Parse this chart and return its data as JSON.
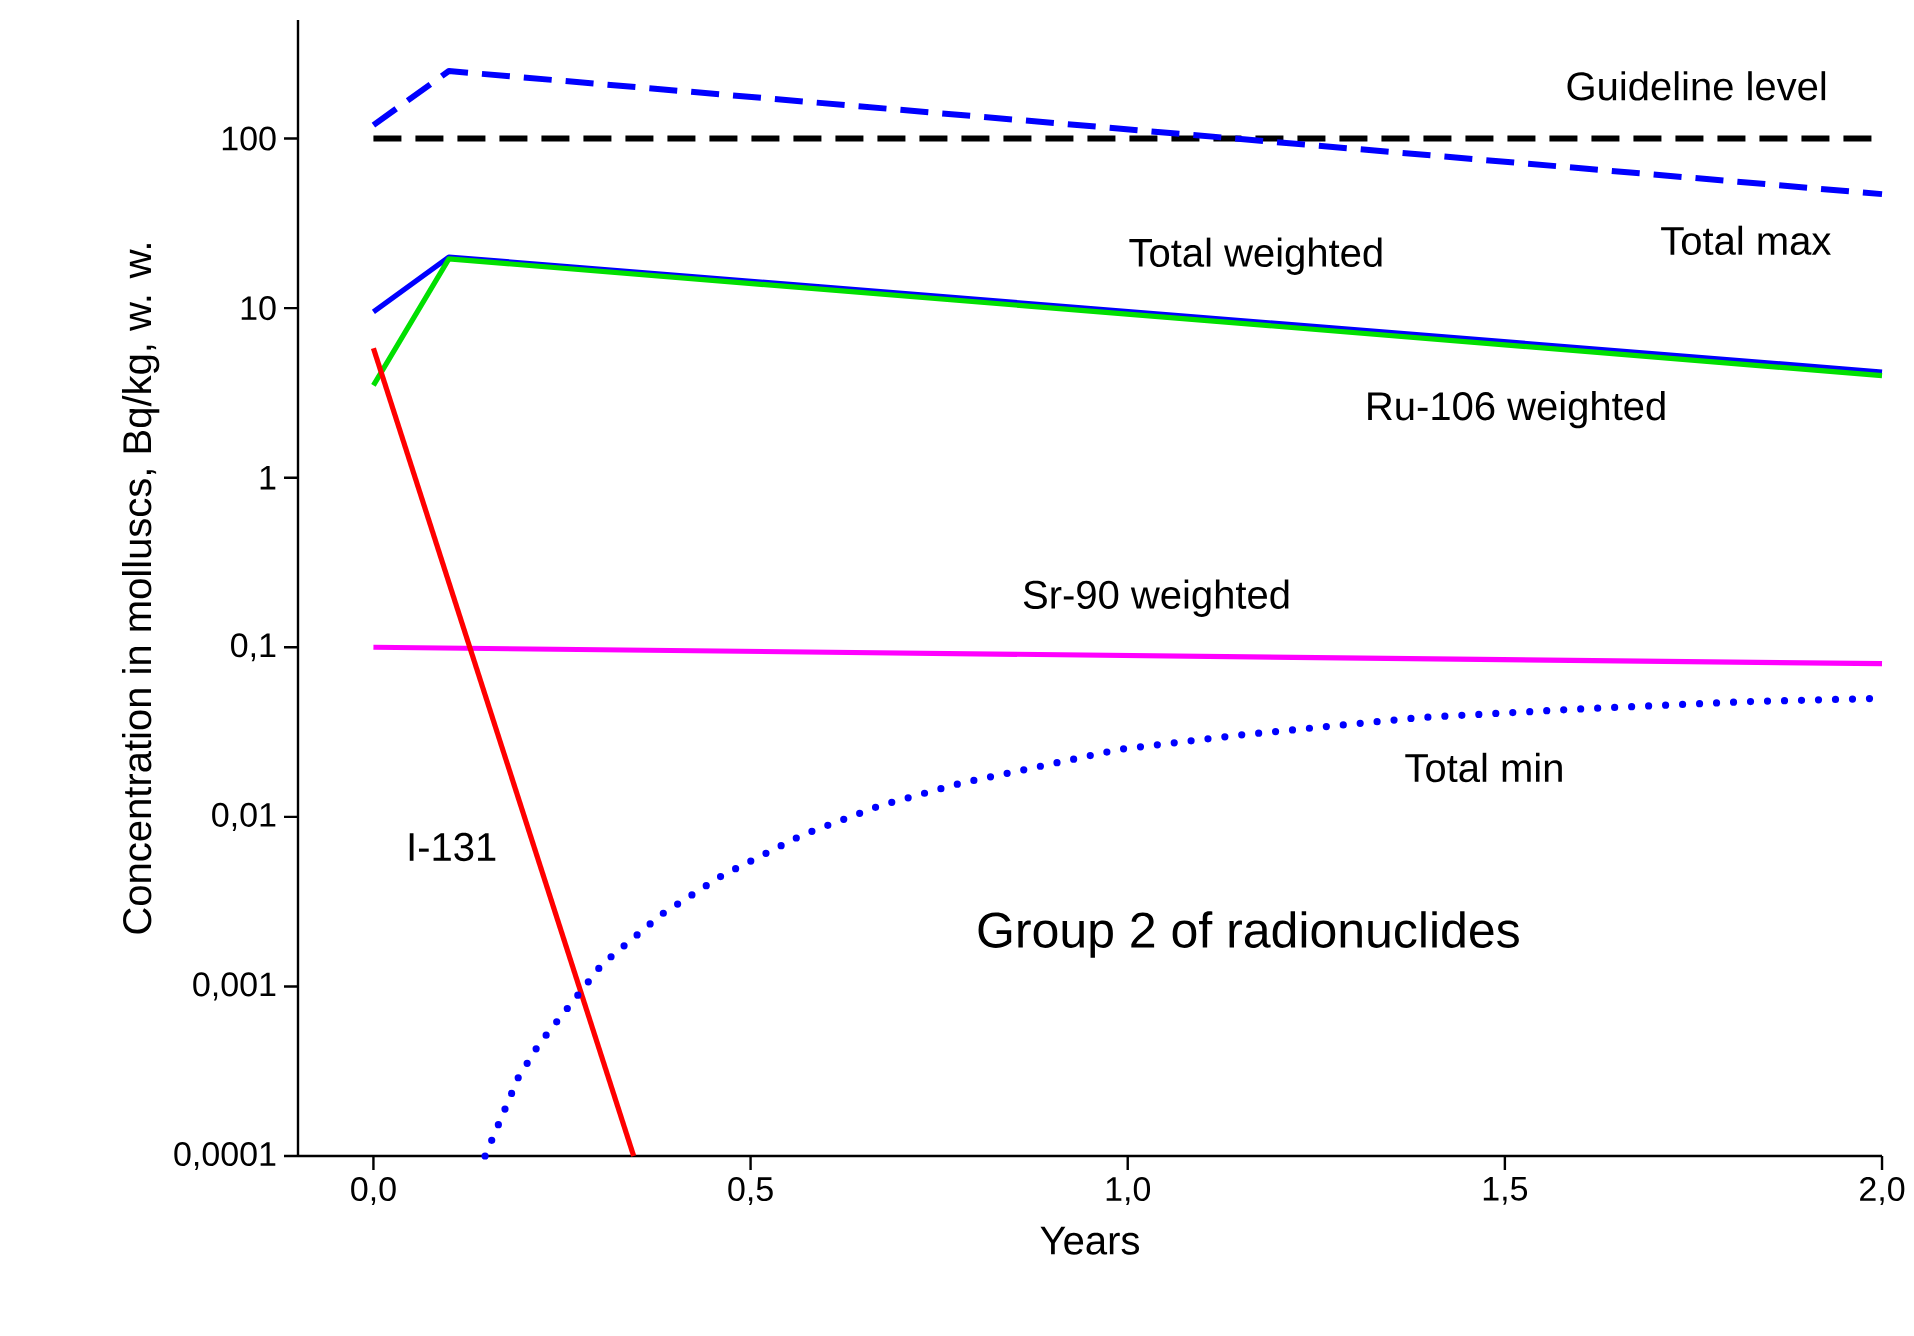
{
  "chart_data": {
    "type": "line",
    "log": true,
    "grid": false,
    "xlabel": "Years",
    "ylabel": "Concentration in molluscs, Bq/kg, w. w.",
    "xlim": [
      -0.1,
      2.0
    ],
    "ylim": [
      0.0001,
      500
    ],
    "xticks": [
      {
        "value": 0,
        "label": "0,0"
      },
      {
        "value": 0.5,
        "label": "0,5"
      },
      {
        "value": 1,
        "label": "1,0"
      },
      {
        "value": 1.5,
        "label": "1,5"
      },
      {
        "value": 2,
        "label": "2,0"
      }
    ],
    "yticks": [
      {
        "value": 0.0001,
        "label": "0,0001"
      },
      {
        "value": 0.001,
        "label": "0,001"
      },
      {
        "value": 0.01,
        "label": "0,01"
      },
      {
        "value": 0.1,
        "label": "0,1"
      },
      {
        "value": 1,
        "label": "1"
      },
      {
        "value": 10,
        "label": "10"
      },
      {
        "value": 100,
        "label": "100"
      }
    ],
    "series": [
      {
        "name": "Guideline level",
        "color": "#000000",
        "line_style": "dashed",
        "x": [
          0,
          2
        ],
        "values": [
          100,
          100
        ]
      },
      {
        "name": "Total max",
        "color": "#0000ff",
        "line_style": "dashed",
        "x": [
          0,
          0.1,
          2
        ],
        "values": [
          120,
          250,
          47
        ]
      },
      {
        "name": "Total weighted",
        "color": "#0000ff",
        "line_style": "solid",
        "x": [
          0,
          0.1,
          2
        ],
        "values": [
          9.5,
          20,
          4.2
        ]
      },
      {
        "name": "Ru-106 weighted",
        "color": "#00e000",
        "line_style": "solid",
        "x": [
          0,
          0.1,
          2
        ],
        "values": [
          3.5,
          19.5,
          4.0
        ]
      },
      {
        "name": "Sr-90 weighted",
        "color": "#ff00ff",
        "line_style": "solid",
        "x": [
          0,
          2
        ],
        "values": [
          0.1,
          0.08
        ]
      },
      {
        "name": "I-131",
        "color": "#ff0000",
        "line_style": "solid",
        "x": [
          0,
          0.345
        ],
        "values": [
          5.8,
          0.0001
        ]
      },
      {
        "name": "Total min",
        "color": "#0000ff",
        "line_style": "dotted",
        "x": [
          0.148,
          0.17,
          0.192,
          0.22,
          0.261,
          0.303,
          0.382,
          0.462,
          0.568,
          0.673,
          0.779,
          0.989,
          1.149,
          1.387,
          1.6,
          1.82,
          2.0
        ],
        "values": [
          0.0001,
          0.00017,
          0.00029,
          0.00046,
          0.00078,
          0.00135,
          0.00266,
          0.0045,
          0.0078,
          0.0117,
          0.0158,
          0.025,
          0.0304,
          0.0385,
          0.0433,
          0.0478,
          0.05
        ]
      }
    ],
    "annotations": [
      "Group 2 of radionuclides"
    ]
  }
}
